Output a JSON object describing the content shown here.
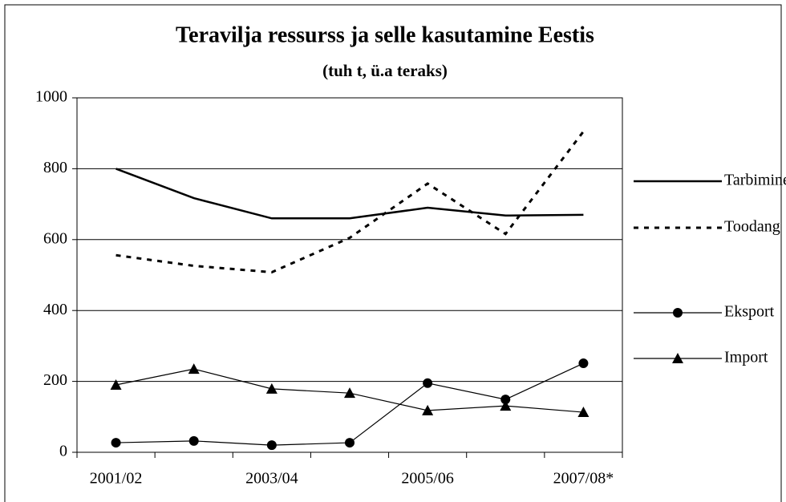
{
  "chart_data": {
    "type": "line",
    "title": "Teravilja ressurss ja selle kasutamine Eestis",
    "subtitle": "(tuh t, ü.a teraks)",
    "categories": [
      "2001/02",
      null,
      "2003/04",
      null,
      "2005/06",
      null,
      "2007/08*"
    ],
    "series": [
      {
        "name": "Tarbimine",
        "color": "#000000",
        "width": 2.5,
        "dash": "none",
        "marker": "none",
        "values": [
          800,
          717,
          660,
          660,
          690,
          668,
          670
        ]
      },
      {
        "name": "Toodang",
        "color": "#000000",
        "width": 3,
        "dash": "6 7",
        "marker": "none",
        "values": [
          556,
          526,
          508,
          605,
          758,
          616,
          905
        ]
      },
      {
        "name": "Eksport",
        "color": "#000000",
        "width": 1.2,
        "dash": "none",
        "marker": "circle",
        "values": [
          27,
          32,
          20,
          27,
          195,
          149,
          251
        ]
      },
      {
        "name": "Import",
        "color": "#000000",
        "width": 1.2,
        "dash": "none",
        "marker": "triangle",
        "values": [
          190,
          235,
          179,
          167,
          118,
          131,
          113
        ]
      }
    ],
    "ylim": [
      0,
      1000
    ],
    "yticks": [
      0,
      200,
      400,
      600,
      800,
      1000
    ],
    "grid": true,
    "legend": "right"
  }
}
